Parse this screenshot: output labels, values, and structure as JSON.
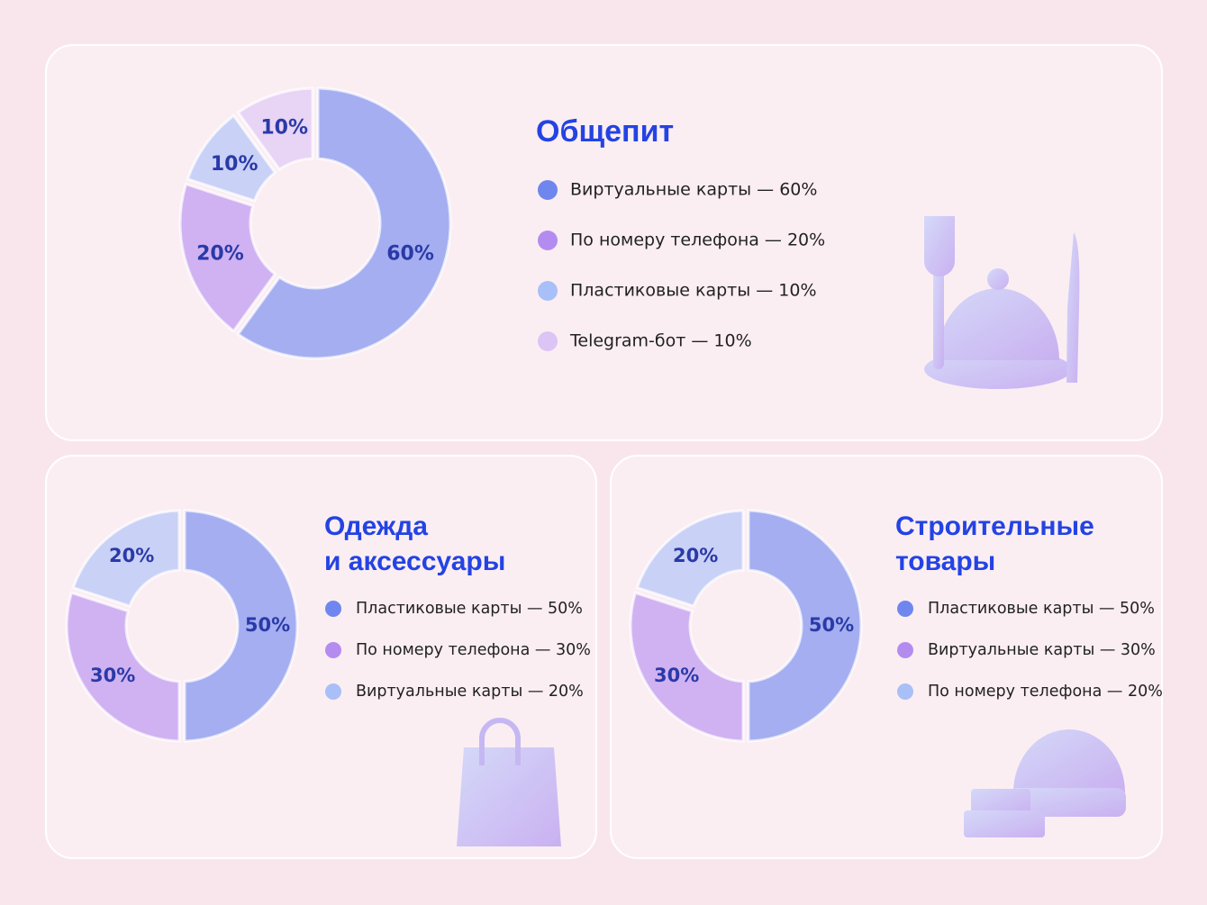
{
  "chart_data": [
    {
      "type": "donut",
      "title": [
        "Общепит"
      ],
      "categories": [
        "Виртуальные карты — 60%",
        "По номеру телефона — 20%",
        "Пластиковые карты — 10%",
        "Telegram-бот — 10%"
      ],
      "values": [
        60,
        20,
        10,
        10
      ],
      "value_labels": [
        "60%",
        "20%",
        "10%",
        "10%"
      ],
      "colors": [
        "#6f86ee",
        "#b48cf0",
        "#a9bff7",
        "#dcc4f5"
      ]
    },
    {
      "type": "donut",
      "title": [
        "Одежда",
        "и аксессуары"
      ],
      "categories": [
        "Пластиковые карты — 50%",
        "По номеру телефона — 30%",
        "Виртуальные карты — 20%"
      ],
      "values": [
        50,
        30,
        20
      ],
      "value_labels": [
        "50%",
        "30%",
        "20%"
      ],
      "colors": [
        "#6f86ee",
        "#b48cf0",
        "#a9bff7"
      ]
    },
    {
      "type": "donut",
      "title": [
        "Строительные",
        "товары"
      ],
      "categories": [
        "Пластиковые карты — 50%",
        "Виртуальные карты — 30%",
        "По номеру телефона — 20%"
      ],
      "values": [
        50,
        30,
        20
      ],
      "value_labels": [
        "50%",
        "30%",
        "20%"
      ],
      "colors": [
        "#6f86ee",
        "#b48cf0",
        "#a9bff7"
      ]
    }
  ]
}
